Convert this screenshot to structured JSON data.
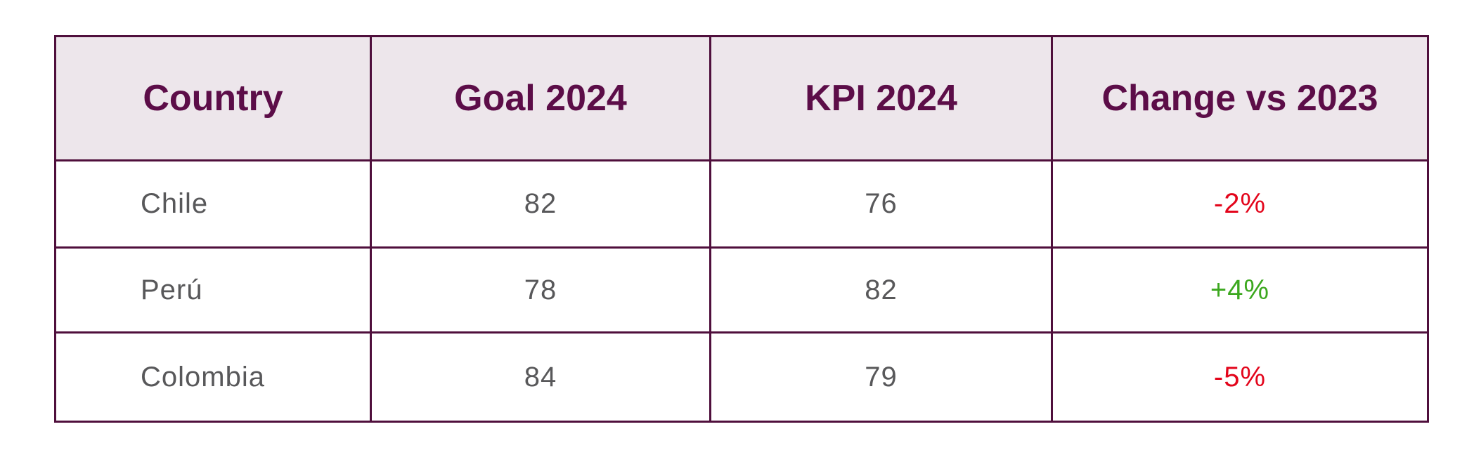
{
  "table": {
    "headers": [
      "Country",
      "Goal 2024",
      "KPI 2024",
      "Change vs 2023"
    ],
    "rows": [
      {
        "country": "Chile",
        "goal": "82",
        "kpi": "76",
        "change": "-2%",
        "change_status": "negative"
      },
      {
        "country": "Perú",
        "goal": "78",
        "kpi": "82",
        "change": "+4%",
        "change_status": "positive"
      },
      {
        "country": "Colombia",
        "goal": "84",
        "kpi": "79",
        "change": "-5%",
        "change_status": "negative"
      }
    ]
  },
  "colors": {
    "border": "#4f0f3c",
    "header_background": "#ede6eb",
    "header_text": "#5c0d48",
    "body_text": "#58585a",
    "negative": "#e3051b",
    "positive": "#3ca81f"
  }
}
